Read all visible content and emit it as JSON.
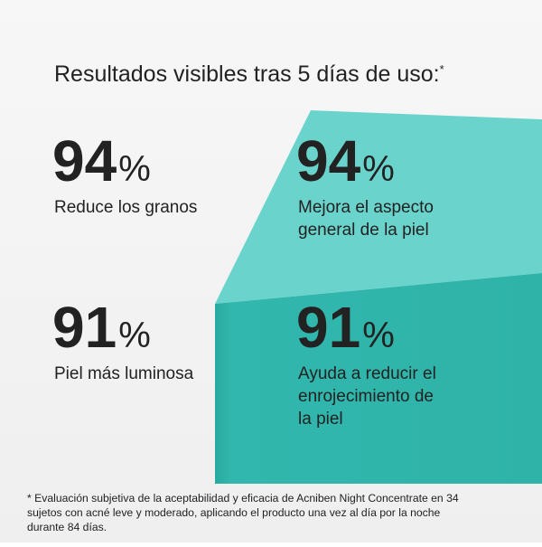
{
  "title": "Resultados visibles tras 5 días de uso:",
  "title_mark": "*",
  "stats": [
    {
      "value": 94,
      "unit": "%",
      "label_lines": [
        "Reduce los granos"
      ]
    },
    {
      "value": 94,
      "unit": "%",
      "label_lines": [
        "Mejora el aspecto",
        "general de la piel"
      ]
    },
    {
      "value": 91,
      "unit": "%",
      "label_lines": [
        "Piel más luminosa"
      ]
    },
    {
      "value": 91,
      "unit": "%",
      "label_lines": [
        "Ayuda a reducir el",
        "enrojecimiento de",
        "la piel"
      ]
    }
  ],
  "footnote_lines": [
    "* Evaluación subjetiva de la aceptabilidad y eficacia de Acniben Night Concentrate en 34",
    "sujetos con acné leve y moderado, aplicando el producto una vez al día por la noche",
    "durante 84 días."
  ]
}
